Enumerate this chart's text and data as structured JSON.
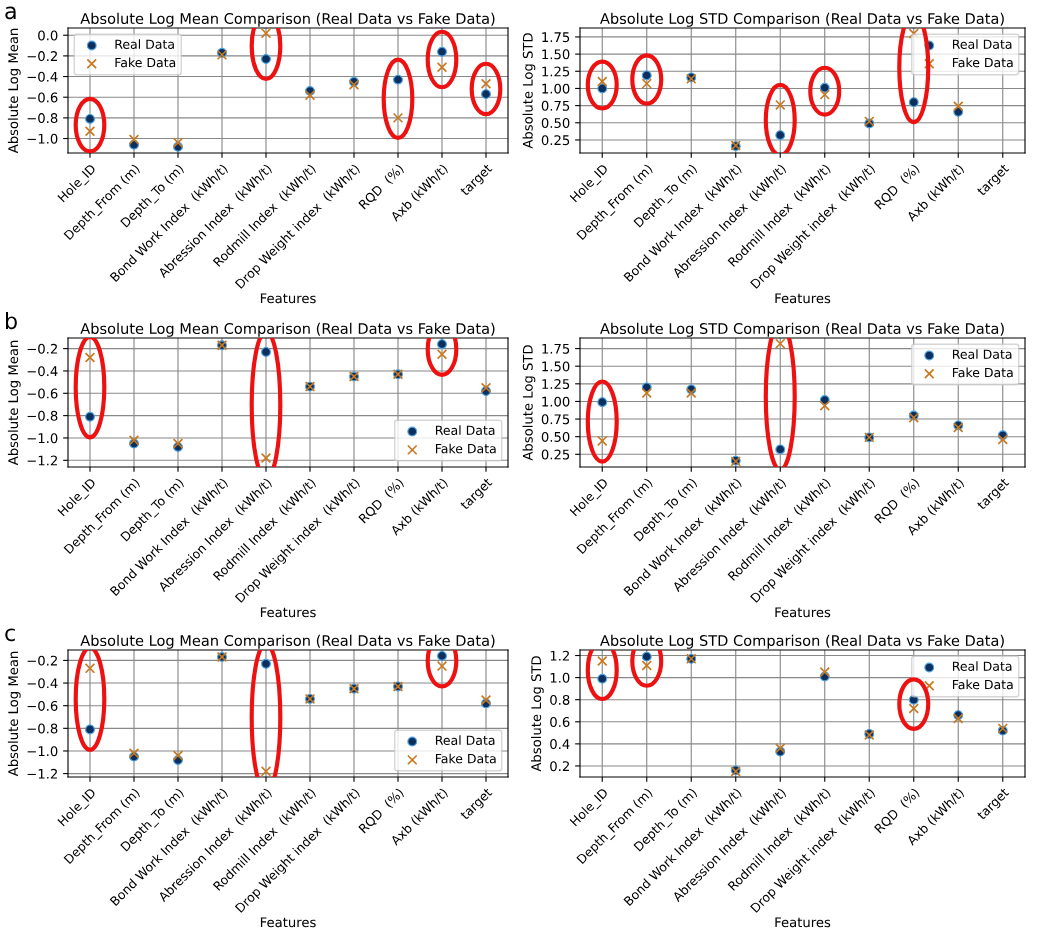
{
  "chart_data": [
    {
      "type": "scatter",
      "title": "Absolute Log Mean Comparison (Real Data vs Fake Data)",
      "xlabel": "Features",
      "ylabel": "Absolute Log Mean",
      "annotations": [
        "a"
      ],
      "categories": [
        "Hole_ID",
        "Depth_From (m)",
        "Depth_To (m)",
        "Bond Work Index  (kWh/t)",
        "Abression Index  (kWh/t)",
        "Rodmill Index  (kWh/t)",
        "Drop Weight index  (kWh/t)",
        "RQD  (%)",
        "Axb (kWh/t)",
        "target"
      ],
      "series": [
        {
          "name": "Real Data",
          "color": "#0b2f5e",
          "marker": "circle",
          "values": [
            -0.81,
            -1.06,
            -1.08,
            -0.17,
            -0.23,
            -0.54,
            -0.45,
            -0.43,
            -0.16,
            -0.57
          ]
        },
        {
          "name": "Fake Data",
          "color": "#c8781e",
          "marker": "cross",
          "values": [
            -0.93,
            -1.01,
            -1.04,
            -0.19,
            0.02,
            -0.58,
            -0.48,
            -0.8,
            -0.31,
            -0.47
          ]
        }
      ],
      "ylim": [
        -1.14,
        0.07
      ],
      "yticks": [
        {
          "value": -1.0,
          "label": "−1.0"
        },
        {
          "value": -0.8,
          "label": "−0.8"
        },
        {
          "value": -0.6,
          "label": "−0.6"
        },
        {
          "value": -0.4,
          "label": "−0.4"
        },
        {
          "value": -0.2,
          "label": "−0.2"
        },
        {
          "value": 0.0,
          "label": "0.0"
        }
      ],
      "grid": true,
      "legend": "top left"
    },
    {
      "type": "scatter",
      "title": "Absolute Log STD Comparison (Real Data vs Fake Data)",
      "xlabel": "Features",
      "ylabel": "Absolute Log STD",
      "categories": [
        "Hole_ID",
        "Depth_From (m)",
        "Depth_To (m)",
        "Bond Work Index  (kWh/t)",
        "Abression Index  (kWh/t)",
        "Rodmill Index  (kWh/t)",
        "Drop Weight index  (kWh/t)",
        "RQD  (%)",
        "Axb (kWh/t)",
        "target"
      ],
      "series": [
        {
          "name": "Real Data",
          "color": "#0b2f5e",
          "marker": "circle",
          "values": [
            1.0,
            1.19,
            1.16,
            0.16,
            0.32,
            1.01,
            0.49,
            0.8,
            0.66,
            null
          ]
        },
        {
          "name": "Fake Data",
          "color": "#c8781e",
          "marker": "cross",
          "values": [
            1.1,
            1.07,
            1.14,
            0.17,
            0.76,
            0.91,
            0.52,
            1.8,
            0.74,
            null
          ]
        }
      ],
      "ylim": [
        0.06,
        1.88
      ],
      "yticks": [
        {
          "value": 0.25,
          "label": "0.25"
        },
        {
          "value": 0.5,
          "label": "0.50"
        },
        {
          "value": 0.75,
          "label": "0.75"
        },
        {
          "value": 1.0,
          "label": "1.00"
        },
        {
          "value": 1.25,
          "label": "1.25"
        },
        {
          "value": 1.5,
          "label": "1.50"
        },
        {
          "value": 1.75,
          "label": "1.75"
        }
      ],
      "grid": true,
      "legend": "top right"
    },
    {
      "type": "scatter",
      "title": "Absolute Log Mean Comparison (Real Data vs Fake Data)",
      "xlabel": "Features",
      "ylabel": "Absolute Log Mean",
      "annotations": [
        "b"
      ],
      "categories": [
        "Hole_ID",
        "Depth_From (m)",
        "Depth_To (m)",
        "Bond Work Index  (kWh/t)",
        "Abression Index  (kWh/t)",
        "Rodmill Index  (kWh/t)",
        "Drop Weight index  (kWh/t)",
        "RQD  (%)",
        "Axb (kWh/t)",
        "target"
      ],
      "series": [
        {
          "name": "Real Data",
          "color": "#0b2f5e",
          "marker": "circle",
          "values": [
            -0.81,
            -1.05,
            -1.08,
            -0.17,
            -0.23,
            -0.54,
            -0.45,
            -0.43,
            -0.16,
            -0.58
          ]
        },
        {
          "name": "Fake Data",
          "color": "#c8781e",
          "marker": "cross",
          "values": [
            -0.28,
            -1.02,
            -1.05,
            -0.17,
            -1.18,
            -0.54,
            -0.45,
            -0.43,
            -0.25,
            -0.55
          ]
        }
      ],
      "ylim": [
        -1.26,
        -0.105
      ],
      "yticks": [
        {
          "value": -1.2,
          "label": "−1.2"
        },
        {
          "value": -1.0,
          "label": "−1.0"
        },
        {
          "value": -0.8,
          "label": "−0.8"
        },
        {
          "value": -0.6,
          "label": "−0.6"
        },
        {
          "value": -0.4,
          "label": "−0.4"
        },
        {
          "value": -0.2,
          "label": "−0.2"
        }
      ],
      "grid": true,
      "legend": "bottom right"
    },
    {
      "type": "scatter",
      "title": "Absolute Log STD Comparison (Real Data vs Fake Data)",
      "xlabel": "Features",
      "ylabel": "Absolute Log STD",
      "categories": [
        "Hole_ID",
        "Depth_From (m)",
        "Depth_To (m)",
        "Bond Work Index  (kWh/t)",
        "Abression Index  (kWh/t)",
        "Rodmill Index  (kWh/t)",
        "Drop Weight index  (kWh/t)",
        "RQD  (%)",
        "Axb (kWh/t)",
        "target"
      ],
      "series": [
        {
          "name": "Real Data",
          "color": "#0b2f5e",
          "marker": "circle",
          "values": [
            0.99,
            1.2,
            1.17,
            0.16,
            0.32,
            1.02,
            0.49,
            0.8,
            0.66,
            0.52
          ]
        },
        {
          "name": "Fake Data",
          "color": "#c8781e",
          "marker": "cross",
          "values": [
            0.44,
            1.12,
            1.12,
            0.15,
            1.82,
            0.94,
            0.49,
            0.77,
            0.63,
            0.46
          ]
        }
      ],
      "ylim": [
        0.07,
        1.9
      ],
      "yticks": [
        {
          "value": 0.25,
          "label": "0.25"
        },
        {
          "value": 0.5,
          "label": "0.50"
        },
        {
          "value": 0.75,
          "label": "0.75"
        },
        {
          "value": 1.0,
          "label": "1.00"
        },
        {
          "value": 1.25,
          "label": "1.25"
        },
        {
          "value": 1.5,
          "label": "1.50"
        },
        {
          "value": 1.75,
          "label": "1.75"
        }
      ],
      "grid": true,
      "legend": "top right"
    },
    {
      "type": "scatter",
      "title": "Absolute Log Mean Comparison (Real Data vs Fake Data)",
      "xlabel": "Features",
      "ylabel": "Absolute Log Mean",
      "annotations": [
        "c"
      ],
      "categories": [
        "Hole_ID",
        "Depth_From (m)",
        "Depth_To (m)",
        "Bond Work Index  (kWh/t)",
        "Abression Index  (kWh/t)",
        "Rodmill Index  (kWh/t)",
        "Drop Weight index  (kWh/t)",
        "RQD  (%)",
        "Axb (kWh/t)",
        "target"
      ],
      "series": [
        {
          "name": "Real Data",
          "color": "#0b2f5e",
          "marker": "circle",
          "values": [
            -0.81,
            -1.05,
            -1.08,
            -0.17,
            -0.23,
            -0.54,
            -0.45,
            -0.43,
            -0.16,
            -0.58
          ]
        },
        {
          "name": "Fake Data",
          "color": "#c8781e",
          "marker": "cross",
          "values": [
            -0.27,
            -1.02,
            -1.04,
            -0.17,
            -1.18,
            -0.54,
            -0.45,
            -0.43,
            -0.25,
            -0.55
          ]
        }
      ],
      "ylim": [
        -1.23,
        -0.108
      ],
      "yticks": [
        {
          "value": -1.2,
          "label": "−1.2"
        },
        {
          "value": -1.0,
          "label": "−1.0"
        },
        {
          "value": -0.8,
          "label": "−0.8"
        },
        {
          "value": -0.6,
          "label": "−0.6"
        },
        {
          "value": -0.4,
          "label": "−0.4"
        },
        {
          "value": -0.2,
          "label": "−0.2"
        }
      ],
      "grid": true,
      "legend": "bottom right"
    },
    {
      "type": "scatter",
      "title": "Absolute Log STD Comparison (Real Data vs Fake Data)",
      "xlabel": "Features",
      "ylabel": "Absolute Log STD",
      "categories": [
        "Hole_ID",
        "Depth_From (m)",
        "Depth_To (m)",
        "Bond Work Index  (kWh/t)",
        "Abression Index  (kWh/t)",
        "Rodmill Index  (kWh/t)",
        "Drop Weight index  (kWh/t)",
        "RQD  (%)",
        "Axb (kWh/t)",
        "target"
      ],
      "series": [
        {
          "name": "Real Data",
          "color": "#0b2f5e",
          "marker": "circle",
          "values": [
            0.99,
            1.19,
            1.17,
            0.16,
            0.33,
            1.01,
            0.49,
            0.8,
            0.66,
            0.52
          ]
        },
        {
          "name": "Fake Data",
          "color": "#c8781e",
          "marker": "cross",
          "values": [
            1.15,
            1.11,
            1.17,
            0.15,
            0.36,
            1.05,
            0.48,
            0.72,
            0.63,
            0.54
          ]
        }
      ],
      "ylim": [
        0.1,
        1.25
      ],
      "yticks": [
        {
          "value": 0.2,
          "label": "0.2"
        },
        {
          "value": 0.4,
          "label": "0.4"
        },
        {
          "value": 0.6,
          "label": "0.6"
        },
        {
          "value": 0.8,
          "label": "0.8"
        },
        {
          "value": 1.0,
          "label": "1.0"
        },
        {
          "value": 1.2,
          "label": "1.2"
        }
      ],
      "grid": true,
      "legend": "top right"
    }
  ]
}
